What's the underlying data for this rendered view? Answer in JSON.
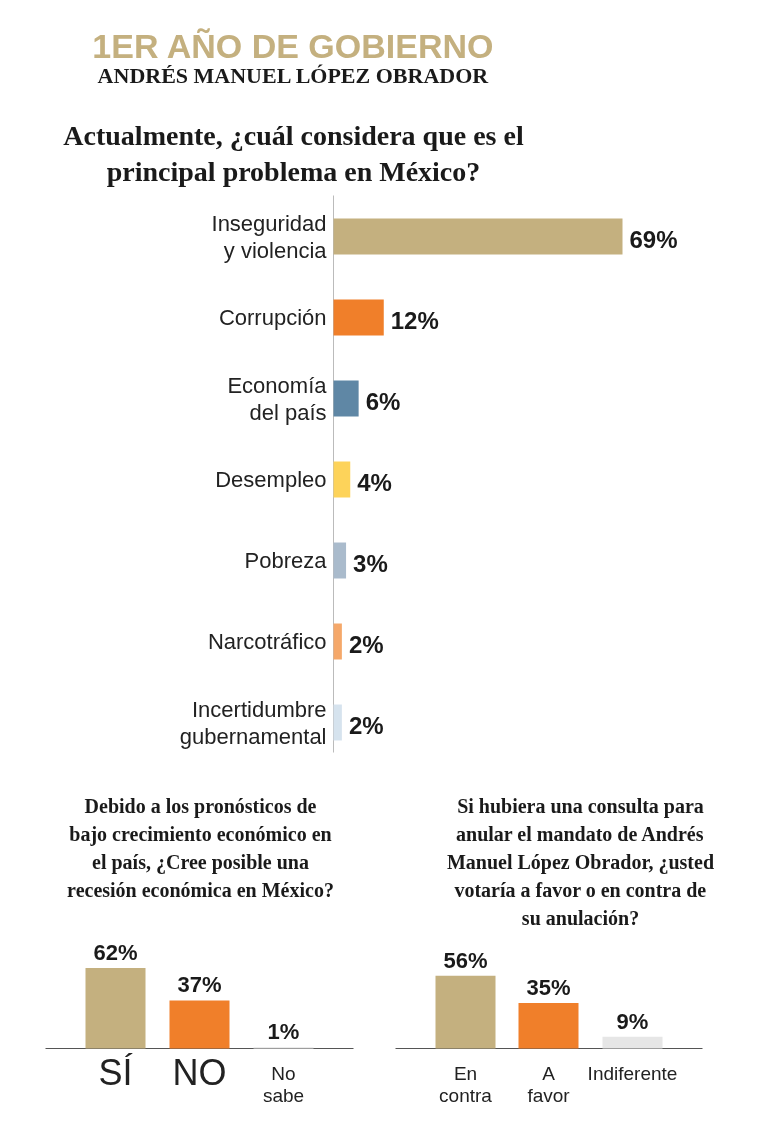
{
  "chart_data": [
    {
      "type": "bar",
      "orientation": "horizontal",
      "title": "Actualmente, ¿cuál considera que es el principal problema en México?",
      "annotations": [
        "1ER AÑO DE GOBIERNO",
        "ANDRÉS MANUEL LÓPEZ OBRADOR"
      ],
      "categories": [
        "Inseguridad y violencia",
        "Corrupción",
        "Economía del país",
        "Desempleo",
        "Pobreza",
        "Narcotráfico",
        "Incertidumbre gubernamental"
      ],
      "values": [
        69,
        12,
        6,
        4,
        3,
        2,
        2
      ],
      "colors": [
        "#c4b07f",
        "#f07f2a",
        "#5f87a5",
        "#fdd35a",
        "#aabbcc",
        "#f5a86a",
        "#d6e3ee"
      ],
      "value_labels": [
        "69%",
        "12%",
        "6%",
        "4%",
        "3%",
        "2%",
        "2%"
      ]
    },
    {
      "type": "bar",
      "title": "Debido a los pronósticos de bajo crecimiento económico en el país, ¿Cree posible una recesión económica en México?",
      "categories": [
        "SÍ",
        "NO",
        "No sabe"
      ],
      "values": [
        62,
        37,
        1
      ],
      "colors": [
        "#c4b07f",
        "#f07f2a",
        "#e6e6e6"
      ],
      "value_labels": [
        "62%",
        "37%",
        "1%"
      ]
    },
    {
      "type": "bar",
      "title": "Si hubiera una consulta para anular el mandato de Andrés Manuel López Obrador, ¿usted votaría a favor o en contra de su anulación?",
      "categories": [
        "En contra",
        "A favor",
        "Indiferente"
      ],
      "values": [
        56,
        35,
        9
      ],
      "colors": [
        "#c4b07f",
        "#f07f2a",
        "#e6e6e6"
      ],
      "value_labels": [
        "56%",
        "35%",
        "9%"
      ]
    }
  ]
}
